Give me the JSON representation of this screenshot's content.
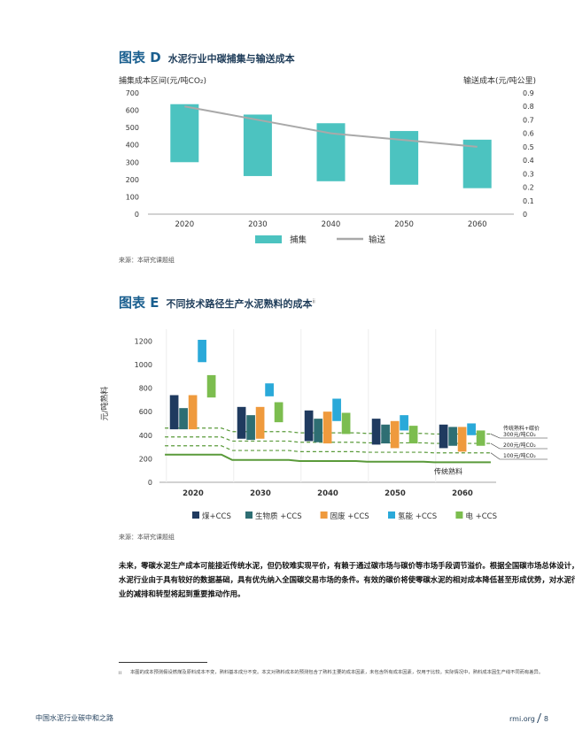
{
  "figure_d": {
    "tag": "图表 D",
    "title": "水泥行业中碳捕集与输送成本",
    "left_axis_label": "捕集成本区间(元/吨CO₂)",
    "right_axis_label": "输送成本(元/吨公里)",
    "source": "来源：本研究课题组"
  },
  "figure_e": {
    "tag": "图表 E",
    "title": "不同技术路径生产水泥熟料的成本",
    "title_sup": "ii",
    "source": "来源：本研究课题组"
  },
  "paragraph": "未来，零碳水泥生产成本可能接近传统水泥，但仍较难实现平价，有赖于通过碳市场与碳价等市场手段调节溢价。根据全国碳市场总体设计，水泥行业由于具有较好的数据基础，具有优先纳入全国碳交易市场的条件。有效的碳价将使零碳水泥的相对成本降低甚至形成优势，对水泥行业的减排和转型将起到重要推动作用。",
  "footnote": {
    "mark": "ii",
    "text": "本图的成本预测假设燃煤及原料成本不变，熟料基本成分不变。本文对熟料成本的预测包含了熟料主要的成本因素，未包含所有成本因素，仅用于比较。实际情况中，熟料成本因生产线不同而有差异。"
  },
  "footer": {
    "left": "中国水泥行业碳中和之路",
    "right": "rmi.org",
    "page": "8"
  },
  "chart_data": [
    {
      "type": "bar",
      "subtype": "floating-range-with-line",
      "categories": [
        "2020",
        "2030",
        "2040",
        "2050",
        "2060"
      ],
      "series": [
        {
          "name": "捕集",
          "axis": "left",
          "color": "#4cc3c0",
          "low": [
            300,
            220,
            190,
            170,
            150
          ],
          "high": [
            635,
            575,
            525,
            480,
            430
          ]
        },
        {
          "name": "输送",
          "axis": "right",
          "type": "line",
          "color": "#a9a9a9",
          "values": [
            0.8,
            0.7,
            0.6,
            0.55,
            0.5
          ]
        }
      ],
      "ylabel": "捕集成本区间(元/吨CO₂)",
      "y2label": "输送成本(元/吨公里)",
      "ylim": [
        0,
        700
      ],
      "yticks": [
        0,
        100,
        200,
        300,
        400,
        500,
        600,
        700
      ],
      "y2lim": [
        0,
        0.9
      ],
      "y2ticks": [
        "0",
        "0.1",
        "0.2",
        "0.3",
        "0.4",
        "0.5",
        "0.6",
        "0.7",
        "0.8",
        "0.9"
      ],
      "legend": "bottom"
    },
    {
      "type": "bar",
      "subtype": "floating-range-with-lines",
      "categories": [
        "2020",
        "2030",
        "2040",
        "2050",
        "2060"
      ],
      "ylabel": "元/吨熟料",
      "ylim": [
        0,
        1300
      ],
      "yticks": [
        0,
        200,
        400,
        600,
        800,
        1000,
        1200
      ],
      "series": [
        {
          "name": "煤+CCS",
          "color": "#1f3a5f",
          "low": [
            450,
            370,
            350,
            320,
            290
          ],
          "high": [
            740,
            640,
            610,
            540,
            490
          ]
        },
        {
          "name": "生物质 +CCS",
          "color": "#2e6e73",
          "low": [
            450,
            360,
            340,
            330,
            310
          ],
          "high": [
            630,
            570,
            540,
            490,
            470
          ]
        },
        {
          "name": "固废 +CCS",
          "color": "#ef9a3d",
          "low": [
            450,
            370,
            330,
            290,
            260
          ],
          "high": [
            740,
            640,
            600,
            520,
            470
          ]
        },
        {
          "name": "氢能 +CCS",
          "color": "#2aa9d9",
          "low": [
            1020,
            730,
            520,
            440,
            400
          ],
          "high": [
            1210,
            840,
            710,
            570,
            500
          ]
        },
        {
          "name": "电 +CCS",
          "color": "#7cbd4f",
          "low": [
            720,
            510,
            410,
            330,
            310
          ],
          "high": [
            910,
            680,
            590,
            480,
            440
          ]
        }
      ],
      "lines": [
        {
          "name": "传统熟料",
          "style": "solid",
          "color": "#5a9a3a",
          "values": [
            235,
            190,
            180,
            175,
            170
          ]
        },
        {
          "name": "传统熟料+碳价 300元/吨CO₂",
          "style": "dashed",
          "color": "#5a9a3a",
          "values": [
            460,
            430,
            420,
            415,
            410
          ]
        },
        {
          "name": "200元/吨CO₂",
          "style": "dashed",
          "color": "#5a9a3a",
          "values": [
            385,
            350,
            340,
            335,
            330
          ]
        },
        {
          "name": "100元/吨CO₂",
          "style": "dashed",
          "color": "#5a9a3a",
          "values": [
            310,
            270,
            260,
            255,
            250
          ]
        }
      ],
      "annotations": {
        "top": "传统熟料+碳价",
        "carbon_300": "300元/吨CO₂",
        "carbon_200": "200元/吨CO₂",
        "carbon_100": "100元/吨CO₂",
        "baseline": "传统熟料"
      },
      "legend": "bottom"
    }
  ]
}
